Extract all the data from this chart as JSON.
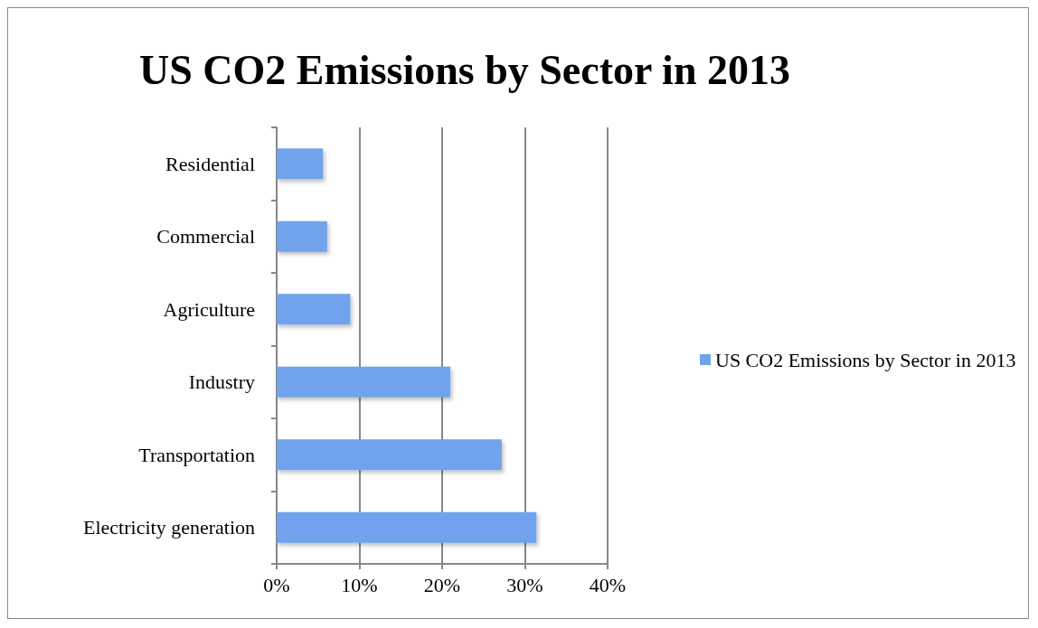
{
  "chart_data": {
    "type": "bar",
    "orientation": "horizontal",
    "title": "US CO2 Emissions by Sector in 2013",
    "categories": [
      "Residential",
      "Commercial",
      "Agriculture",
      "Industry",
      "Transportation",
      "Electricity generation"
    ],
    "series": [
      {
        "name": "US CO2 Emissions by Sector in 2013",
        "color": "#6fa3ec",
        "values": [
          5.6,
          6.1,
          8.9,
          21.0,
          27.2,
          31.4
        ]
      }
    ],
    "xlim": [
      0,
      40
    ],
    "xticks": [
      {
        "value": 0,
        "label": "0%"
      },
      {
        "value": 10,
        "label": "10%"
      },
      {
        "value": 20,
        "label": "20%"
      },
      {
        "value": 30,
        "label": "30%"
      },
      {
        "value": 40,
        "label": "40%"
      }
    ],
    "grid": "x",
    "legend": "right"
  }
}
